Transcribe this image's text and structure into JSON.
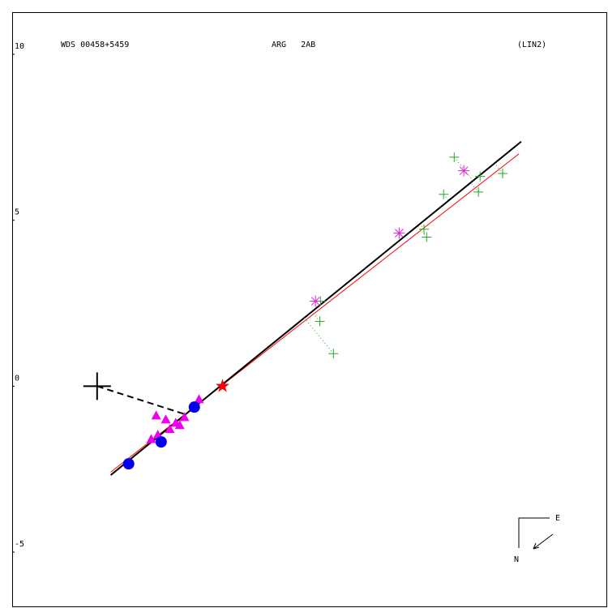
{
  "chart_data": {
    "type": "scatter",
    "labels": {
      "left": "WDS 00458+5459",
      "center": "ARG   2AB",
      "right": "(LIN2)",
      "east": "E",
      "north": "N"
    },
    "xlim": [
      -6.34,
      11.59
    ],
    "ylim": [
      -6.66,
      11.27
    ],
    "yticks": [
      10,
      5,
      0,
      -5
    ],
    "series": [
      {
        "marker": "line",
        "color": "#ff0000",
        "width": 1,
        "x": [
          -3.37,
          8.93
        ],
        "y": [
          -2.59,
          7.0
        ]
      },
      {
        "marker": "line",
        "color": "#000000",
        "width": 2,
        "x": [
          -3.37,
          9.0
        ],
        "y": [
          -2.68,
          7.37
        ]
      },
      {
        "marker": "dashed",
        "color": "#000000",
        "width": 2,
        "x": [
          -3.78,
          -1.12
        ],
        "y": [
          0,
          -0.85
        ]
      },
      {
        "marker": "plus",
        "color": "#22aa22",
        "residuals": true,
        "x": [
          2.95,
          2.93,
          3.34,
          6.07,
          6.15,
          6.98,
          6.66,
          7.71,
          7.76,
          8.44
        ],
        "y": [
          2.56,
          1.95,
          0.98,
          4.73,
          4.49,
          6.9,
          5.78,
          5.85,
          6.32,
          6.41
        ]
      },
      {
        "marker": "asterisk",
        "color": "#dd22dd",
        "x": [
          2.8,
          5.32,
          7.27
        ],
        "y": [
          2.56,
          4.61,
          6.49
        ]
      },
      {
        "marker": "triangle",
        "color": "#ee00ee",
        "x": [
          -2.0,
          -1.71,
          -1.41,
          -1.15,
          -0.71,
          -2.15,
          -1.95,
          -1.59,
          -1.29
        ],
        "y": [
          -0.88,
          -1.0,
          -1.1,
          -0.93,
          -0.39,
          -1.59,
          -1.46,
          -1.29,
          -1.17
        ]
      },
      {
        "marker": "circle",
        "color": "#0000ee",
        "x": [
          -2.83,
          -1.85,
          -0.85
        ],
        "y": [
          -2.34,
          -1.68,
          -0.63
        ]
      },
      {
        "marker": "star",
        "color": "#ff0000",
        "x": [
          0
        ],
        "y": [
          0
        ]
      },
      {
        "marker": "cross",
        "color": "#000000",
        "x": [
          -3.78
        ],
        "y": [
          0
        ]
      }
    ]
  }
}
